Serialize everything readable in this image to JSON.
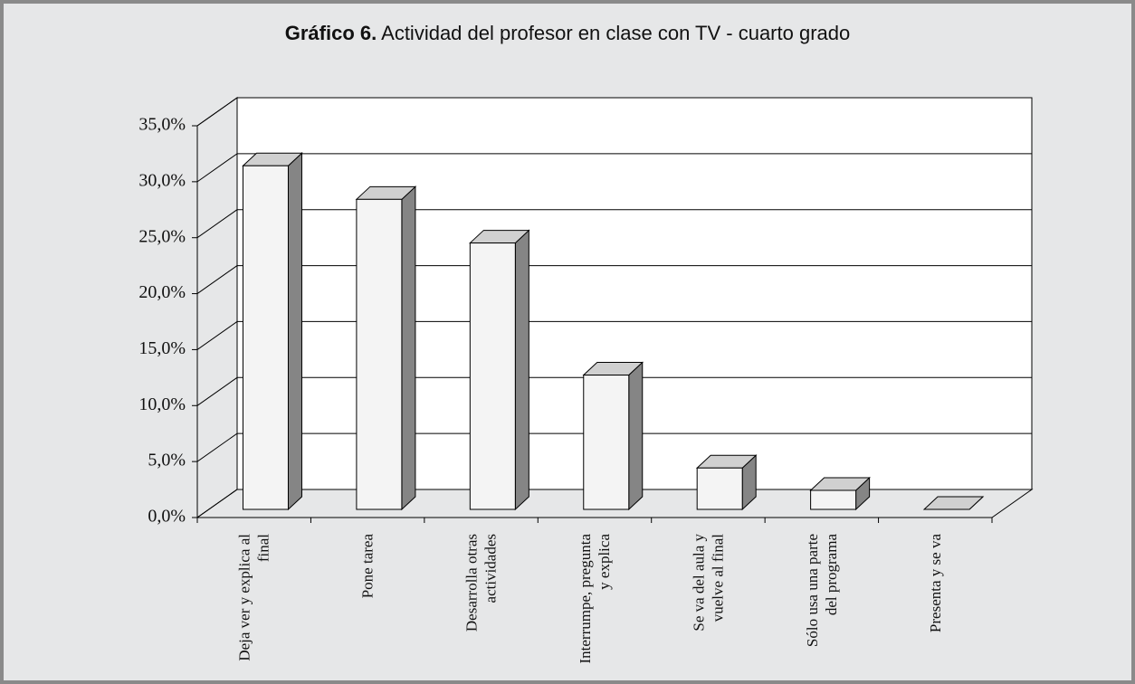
{
  "chart_data": {
    "type": "bar3d",
    "title_label": "Gráfico 6.",
    "title": "Actividad del profesor en clase con TV - cuarto grado",
    "categories": [
      "Deja ver y explica al final",
      "Pone tarea",
      "Desarrolla otras actividades",
      "Interrumpe, pregunta y explica",
      "Se va del aula y vuelve al final",
      "Sólo usa una parte del programa",
      "Presenta y se va"
    ],
    "values": [
      30.7,
      27.7,
      23.8,
      12.0,
      3.7,
      1.7,
      0
    ],
    "color": "#f4f4f4",
    "ylim": [
      0,
      35
    ],
    "yticks": [
      {
        "value": 0,
        "label": "0,0%"
      },
      {
        "value": 5,
        "label": "5,0%"
      },
      {
        "value": 10,
        "label": "10,0%"
      },
      {
        "value": 15,
        "label": "15,0%"
      },
      {
        "value": 20,
        "label": "20,0%"
      },
      {
        "value": 25,
        "label": "25,0%"
      },
      {
        "value": 30,
        "label": "30,0%"
      },
      {
        "value": 35,
        "label": "35,0%"
      }
    ],
    "grid": true
  }
}
